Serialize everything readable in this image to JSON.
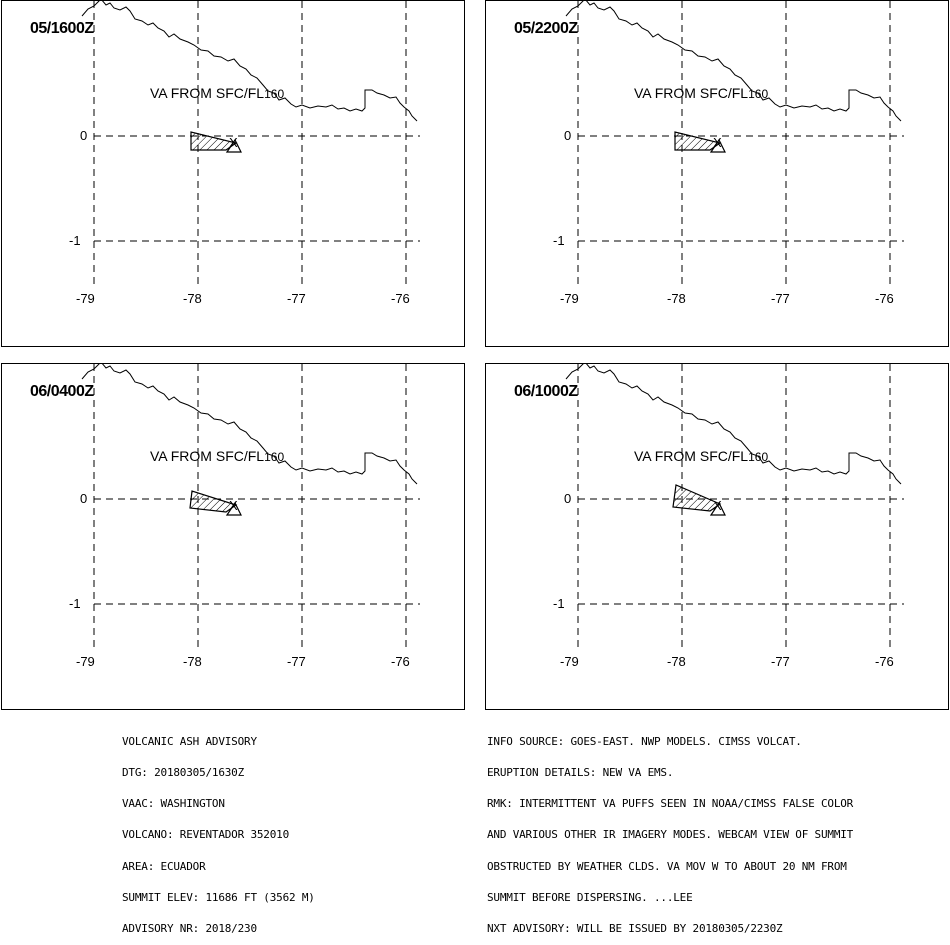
{
  "panels": [
    {
      "time": "05/1600Z",
      "label": "VA FROM SFC/FL",
      "fl": "160"
    },
    {
      "time": "05/2200Z",
      "label": "VA FROM SFC/FL",
      "fl": "160"
    },
    {
      "time": "06/0400Z",
      "label": "VA FROM SFC/FL",
      "fl": "160"
    },
    {
      "time": "06/1000Z",
      "label": "VA FROM SFC/FL",
      "fl": "160"
    }
  ],
  "axes": {
    "lat_labels": [
      "0",
      "-1"
    ],
    "lon_labels": [
      "-79",
      "-78",
      "-77",
      "-76"
    ]
  },
  "volcano_marker": "X",
  "advisory_left": [
    "VOLCANIC ASH ADVISORY",
    "DTG: 20180305/1630Z",
    "VAAC: WASHINGTON",
    "VOLCANO: REVENTADOR 352010",
    "AREA: ECUADOR",
    "SUMMIT ELEV: 11686 FT (3562 M)",
    "ADVISORY NR: 2018/230"
  ],
  "advisory_right": [
    "INFO SOURCE: GOES-EAST. NWP MODELS. CIMSS VOLCAT.",
    "ERUPTION DETAILS: NEW VA EMS.",
    "RMK: INTERMITTENT VA PUFFS SEEN IN NOAA/CIMSS FALSE COLOR",
    "AND VARIOUS OTHER IR IMAGERY MODES. WEBCAM VIEW OF SUMMIT",
    "OBSTRUCTED BY WEATHER CLDS. VA MOV W TO ABOUT 20 NM FROM",
    "SUMMIT BEFORE DISPERSING. ...LEE",
    "NXT ADVISORY: WILL BE ISSUED BY 20180305/2230Z"
  ]
}
